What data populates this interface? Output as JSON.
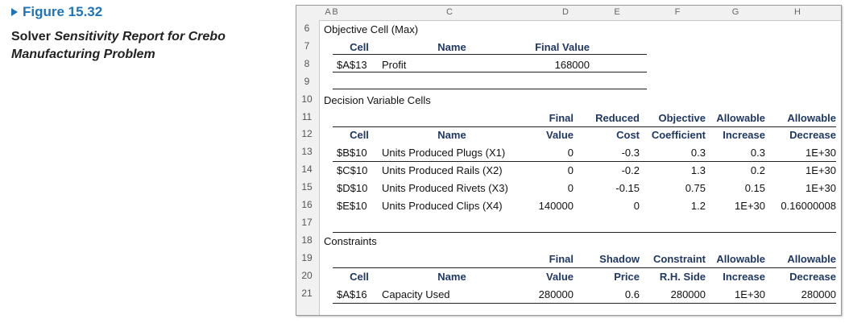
{
  "caption": {
    "figure_label": "Figure 15.32",
    "description_parts": [
      "Solver ",
      "Sensitivity Report",
      " for Crebo Manufacturing Problem"
    ]
  },
  "sheet": {
    "columns": [
      "A",
      "B",
      "C",
      "D",
      "E",
      "F",
      "G",
      "H"
    ],
    "rows": [
      {
        "num": "6",
        "text": "Objective Cell (Max)"
      },
      {
        "num": "7",
        "cell": "Cell",
        "name": "Name",
        "final": "Final Value"
      },
      {
        "num": "8",
        "cell": "$A$13",
        "name": "Profit",
        "final": "168000"
      },
      {
        "num": "9"
      },
      {
        "num": "10",
        "text": "Decision Variable Cells"
      },
      {
        "num": "11",
        "d": "Final",
        "e": "Reduced",
        "f": "Objective",
        "g": "Allowable",
        "h": "Allowable"
      },
      {
        "num": "12",
        "cell": "Cell",
        "name": "Name",
        "d": "Value",
        "e": "Cost",
        "f": "Coefficient",
        "g": "Increase",
        "h": "Decrease"
      },
      {
        "num": "13",
        "cell": "$B$10",
        "name": "Units Produced Plugs (X1)",
        "d": "0",
        "e": "-0.3",
        "f": "0.3",
        "g": "0.3",
        "h": "1E+30"
      },
      {
        "num": "14",
        "cell": "$C$10",
        "name": "Units Produced Rails (X2)",
        "d": "0",
        "e": "-0.2",
        "f": "1.3",
        "g": "0.2",
        "h": "1E+30"
      },
      {
        "num": "15",
        "cell": "$D$10",
        "name": "Units Produced Rivets (X3)",
        "d": "0",
        "e": "-0.15",
        "f": "0.75",
        "g": "0.15",
        "h": "1E+30"
      },
      {
        "num": "16",
        "cell": "$E$10",
        "name": "Units Produced Clips (X4)",
        "d": "140000",
        "e": "0",
        "f": "1.2",
        "g": "1E+30",
        "h": "0.16000008"
      },
      {
        "num": "17"
      },
      {
        "num": "18",
        "text": "Constraints"
      },
      {
        "num": "19",
        "d": "Final",
        "e": "Shadow",
        "f": "Constraint",
        "g": "Allowable",
        "h": "Allowable"
      },
      {
        "num": "20",
        "cell": "Cell",
        "name": "Name",
        "d": "Value",
        "e": "Price",
        "f": "R.H. Side",
        "g": "Increase",
        "h": "Decrease"
      },
      {
        "num": "21",
        "cell": "$A$16",
        "name": "Capacity Used",
        "d": "280000",
        "e": "0.6",
        "f": "280000",
        "g": "1E+30",
        "h": "280000"
      }
    ]
  }
}
